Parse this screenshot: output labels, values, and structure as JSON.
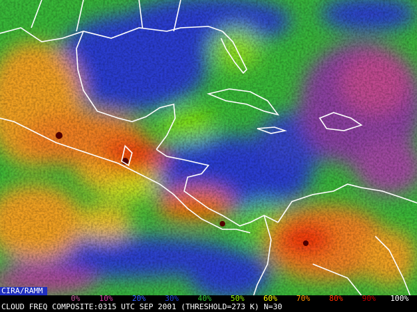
{
  "map": {
    "credit": "CIRA/RAMM",
    "colorbar": {
      "labels": [
        "0%",
        "10%",
        "20%",
        "30%",
        "40%",
        "50%",
        "60%",
        "70%",
        "80%",
        "90%",
        "100%"
      ],
      "colors": [
        "#c05a9a",
        "#d040a0",
        "#3060ff",
        "#2040d0",
        "#30c030",
        "#90f000",
        "#ffff00",
        "#ff9000",
        "#ff3000",
        "#c00000",
        "#ffffff"
      ]
    },
    "caption": "CLOUD FREQ COMPOSITE:0315 UTC SEP 2001 (THRESHOLD=273 K) N=30"
  }
}
